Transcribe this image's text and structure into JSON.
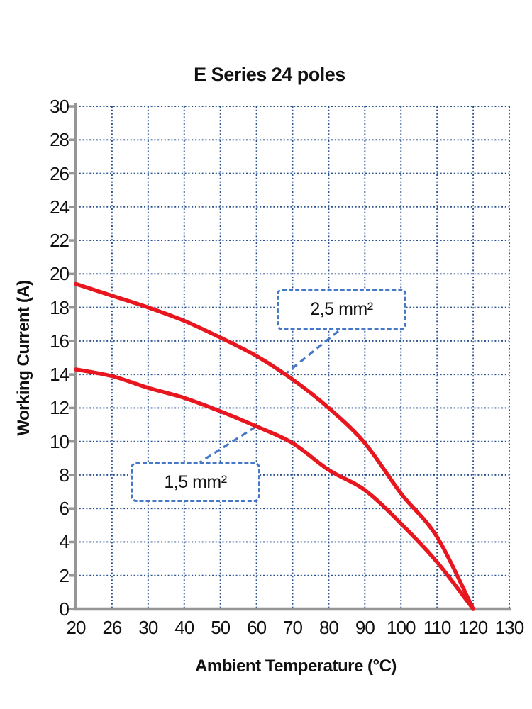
{
  "chart_data": {
    "type": "line",
    "title": "E Series 24 poles",
    "xlabel": "Ambient Temperature (°C)",
    "ylabel": "Working Current (A)",
    "x_ticks": [
      20,
      26,
      30,
      40,
      50,
      60,
      70,
      80,
      90,
      100,
      110,
      120,
      130
    ],
    "ylim": [
      0,
      30
    ],
    "y_tick_step": 2,
    "grid": "dotted-blue-both-axes",
    "legend": "none",
    "series": [
      {
        "name": "2,5 mm²",
        "x": [
          20,
          26,
          30,
          40,
          50,
          60,
          70,
          80,
          90,
          100,
          110,
          120
        ],
        "values": [
          19.4,
          18.7,
          18.0,
          17.2,
          16.2,
          15.1,
          13.7,
          12.0,
          9.9,
          6.9,
          4.3,
          0
        ]
      },
      {
        "name": "1,5 mm²",
        "x": [
          20,
          26,
          30,
          40,
          50,
          60,
          70,
          80,
          90,
          100,
          110,
          120
        ],
        "values": [
          14.3,
          13.9,
          13.2,
          12.6,
          11.8,
          10.9,
          9.9,
          8.3,
          7.1,
          5.1,
          2.8,
          0
        ]
      }
    ],
    "annotations": [
      {
        "label": "2,5 mm²",
        "series": "2,5 mm²"
      },
      {
        "label": "1,5 mm²",
        "series": "1,5 mm²"
      }
    ],
    "colors": {
      "curve": "#e8171f",
      "grid": "#2b5291",
      "axis": "#969696",
      "annotation_border": "#4678c8",
      "text": "#111111",
      "background": "#ffffff"
    }
  }
}
